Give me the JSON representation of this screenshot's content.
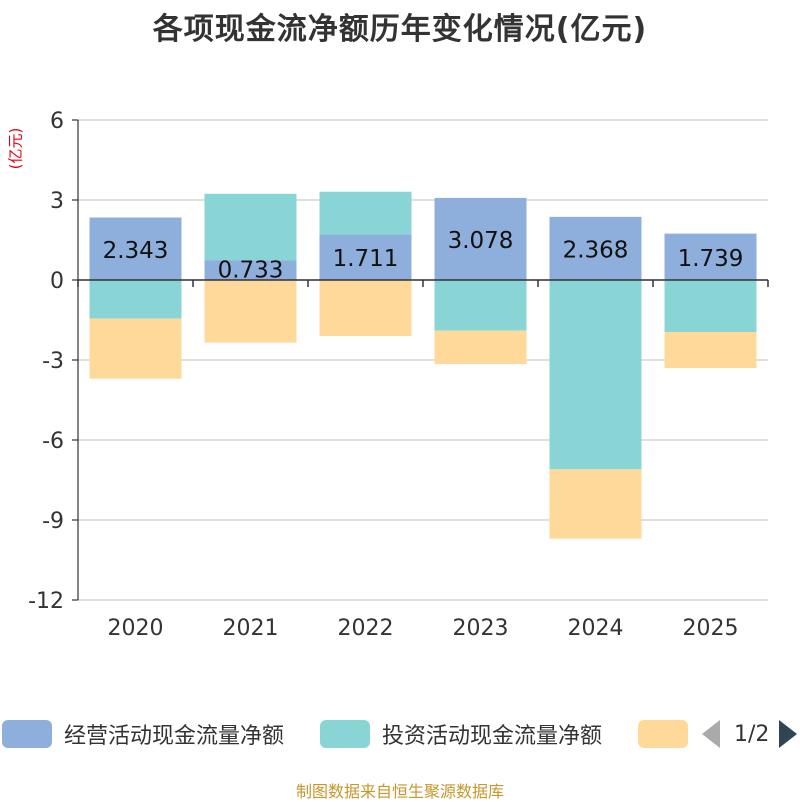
{
  "title": "各项现金流净额历年变化情况(亿元)",
  "source": "制图数据来自恒生聚源数据库",
  "legend_pager": {
    "text": "1/2"
  },
  "colors": {
    "operating": "#8eaedb",
    "investing": "#89d5d6",
    "financing": "#ffd99a",
    "prev_arrow": "#aaaaaa",
    "next_arrow": "#2f4554",
    "unit": "#e60012"
  },
  "chart_data": {
    "type": "bar",
    "stacked": true,
    "title": "各项现金流净额历年变化情况(亿元)",
    "ylabel": "(亿元)",
    "ylim": [
      -12,
      6
    ],
    "yticks": [
      6,
      3,
      0,
      -3,
      -6,
      -9,
      -12
    ],
    "ytick_labels": [
      "6",
      "3",
      "0",
      "-3",
      "-6",
      "-9",
      "-12"
    ],
    "categories": [
      "2020",
      "2021",
      "2022",
      "2023",
      "2024",
      "2025"
    ],
    "series": [
      {
        "name": "经营活动现金流量净额",
        "values": [
          2.343,
          0.733,
          1.711,
          3.078,
          2.368,
          1.739
        ],
        "labels": [
          "2.343",
          "0.733",
          "1.711",
          "3.078",
          "2.368",
          "1.739"
        ]
      },
      {
        "name": "投资活动现金流量净额",
        "values": [
          -1.45,
          2.5,
          1.6,
          -1.9,
          -7.1,
          -1.95
        ]
      },
      {
        "name": "",
        "values": [
          -2.25,
          -2.35,
          -2.1,
          -1.25,
          -2.6,
          -1.35
        ]
      }
    ]
  }
}
